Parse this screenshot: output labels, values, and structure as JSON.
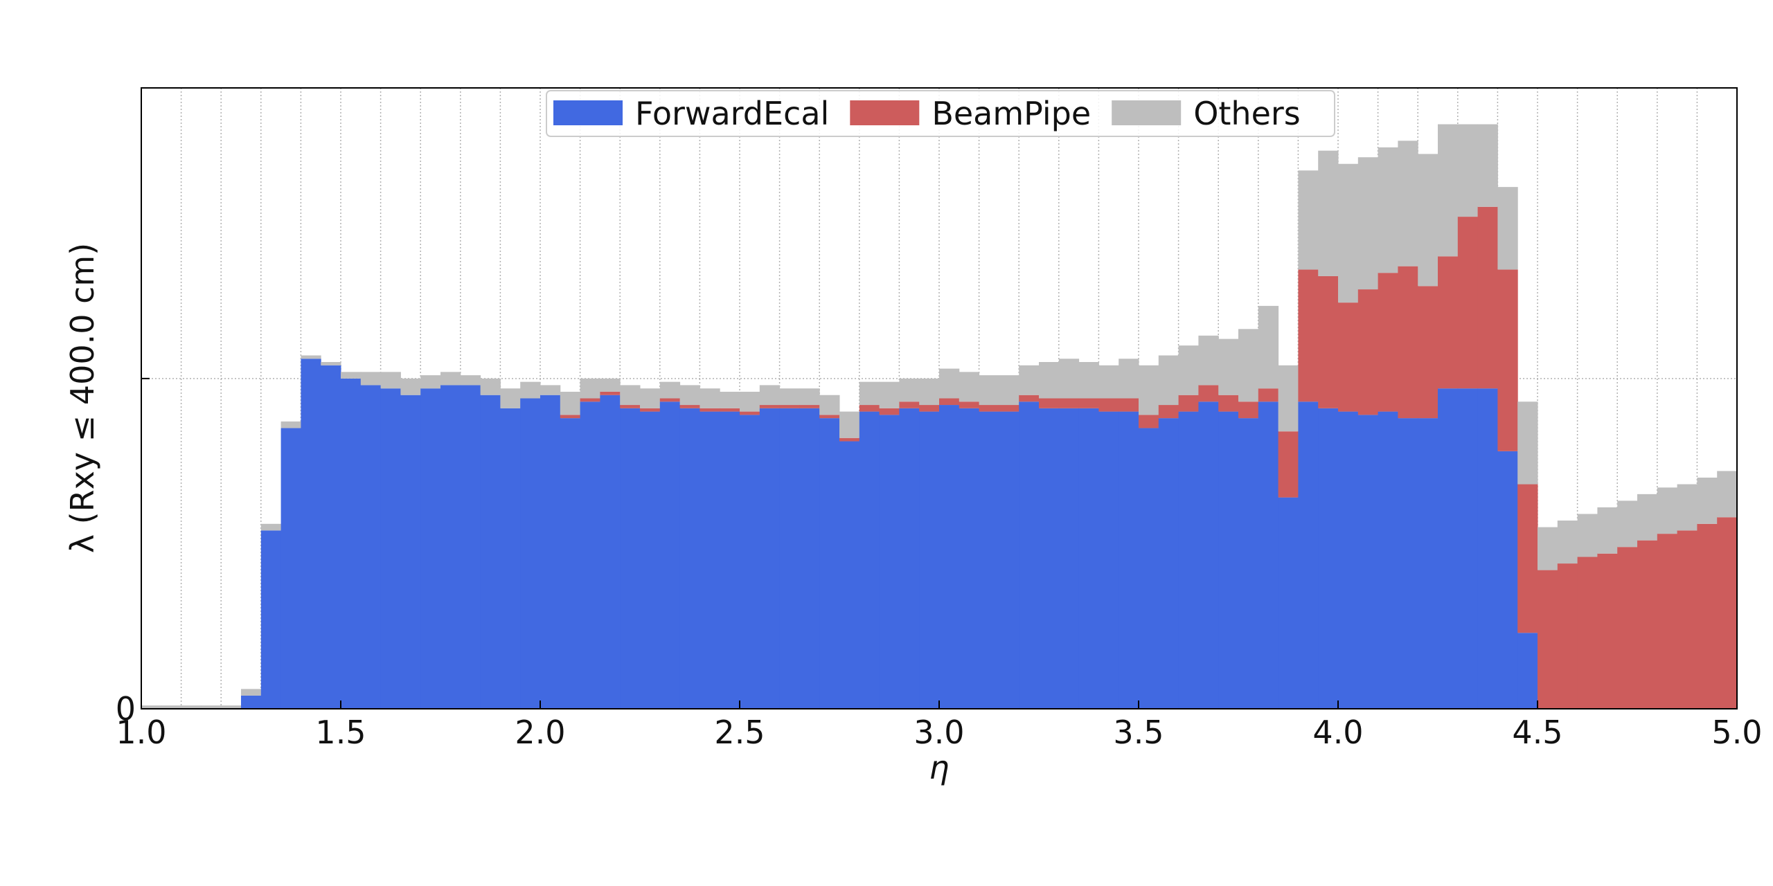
{
  "chart_data": {
    "type": "stacked_histogram",
    "xlabel": "η",
    "ylabel": "λ (Rxy ≤ 400.0 cm)",
    "bins": [
      1.0,
      1.05,
      1.1,
      1.15,
      1.2,
      1.25,
      1.3,
      1.35,
      1.4,
      1.45,
      1.5,
      1.55,
      1.6,
      1.65,
      1.7,
      1.75,
      1.8,
      1.85,
      1.9,
      1.95,
      2.0,
      2.05,
      2.1,
      2.15,
      2.2,
      2.25,
      2.3,
      2.35,
      2.4,
      2.45,
      2.5,
      2.55,
      2.6,
      2.65,
      2.7,
      2.75,
      2.8,
      2.85,
      2.9,
      2.95,
      3.0,
      3.05,
      3.1,
      3.15,
      3.2,
      3.25,
      3.3,
      3.35,
      3.4,
      3.45,
      3.5,
      3.55,
      3.6,
      3.65,
      3.7,
      3.75,
      3.8,
      3.85,
      3.9,
      3.95,
      4.0,
      4.05,
      4.1,
      4.15,
      4.2,
      4.25,
      4.3,
      4.35,
      4.4,
      4.45,
      4.5,
      4.55,
      4.6,
      4.65,
      4.7,
      4.75,
      4.8,
      4.85,
      4.9,
      4.95,
      5.0
    ],
    "series": [
      {
        "name": "ForwardEcal",
        "color": "#4169e1",
        "values": [
          0,
          0,
          0,
          0,
          0,
          0.04,
          0.54,
          0.85,
          1.06,
          1.04,
          1.0,
          0.98,
          0.97,
          0.95,
          0.97,
          0.98,
          0.98,
          0.95,
          0.91,
          0.94,
          0.95,
          0.88,
          0.93,
          0.95,
          0.91,
          0.9,
          0.93,
          0.91,
          0.9,
          0.9,
          0.89,
          0.91,
          0.91,
          0.91,
          0.88,
          0.81,
          0.9,
          0.89,
          0.91,
          0.9,
          0.92,
          0.91,
          0.9,
          0.9,
          0.93,
          0.91,
          0.91,
          0.91,
          0.9,
          0.9,
          0.85,
          0.88,
          0.9,
          0.93,
          0.9,
          0.88,
          0.93,
          0.64,
          0.93,
          0.91,
          0.9,
          0.89,
          0.9,
          0.88,
          0.88,
          0.97,
          0.97,
          0.97,
          0.78,
          0.23,
          0,
          0,
          0,
          0,
          0,
          0,
          0,
          0,
          0,
          0
        ]
      },
      {
        "name": "BeamPipe",
        "color": "#cd5c5c",
        "values": [
          0,
          0,
          0,
          0,
          0,
          0,
          0,
          0,
          0,
          0,
          0,
          0,
          0,
          0,
          0,
          0,
          0,
          0,
          0,
          0,
          0,
          0.01,
          0.01,
          0.01,
          0.01,
          0.01,
          0.01,
          0.01,
          0.01,
          0.01,
          0.01,
          0.01,
          0.01,
          0.01,
          0.01,
          0.01,
          0.02,
          0.02,
          0.02,
          0.02,
          0.02,
          0.02,
          0.02,
          0.02,
          0.02,
          0.03,
          0.03,
          0.03,
          0.04,
          0.04,
          0.04,
          0.04,
          0.05,
          0.05,
          0.05,
          0.05,
          0.04,
          0.2,
          0.4,
          0.4,
          0.33,
          0.38,
          0.42,
          0.46,
          0.4,
          0.4,
          0.52,
          0.55,
          0.55,
          0.45,
          0.42,
          0.44,
          0.46,
          0.47,
          0.49,
          0.51,
          0.53,
          0.54,
          0.56,
          0.58
        ]
      },
      {
        "name": "Others",
        "color": "#bebebe",
        "values": [
          0.01,
          0.01,
          0.01,
          0.01,
          0.01,
          0.02,
          0.02,
          0.02,
          0.01,
          0.01,
          0.02,
          0.04,
          0.05,
          0.05,
          0.04,
          0.04,
          0.03,
          0.05,
          0.06,
          0.05,
          0.03,
          0.07,
          0.06,
          0.04,
          0.06,
          0.06,
          0.05,
          0.06,
          0.06,
          0.05,
          0.06,
          0.06,
          0.05,
          0.05,
          0.06,
          0.08,
          0.07,
          0.08,
          0.07,
          0.08,
          0.09,
          0.09,
          0.09,
          0.09,
          0.09,
          0.11,
          0.12,
          0.11,
          0.1,
          0.12,
          0.15,
          0.15,
          0.15,
          0.15,
          0.17,
          0.22,
          0.25,
          0.2,
          0.3,
          0.38,
          0.42,
          0.4,
          0.38,
          0.38,
          0.4,
          0.4,
          0.28,
          0.25,
          0.25,
          0.25,
          0.13,
          0.13,
          0.13,
          0.14,
          0.14,
          0.14,
          0.14,
          0.14,
          0.14,
          0.14
        ]
      }
    ],
    "xlim": [
      1.0,
      5.0
    ],
    "ylim": [
      0,
      1.88
    ],
    "xticks": [
      {
        "value": 1.0,
        "label": "1.0"
      },
      1.5,
      {
        "value": 2.0,
        "label": "2.0"
      },
      2.5,
      {
        "value": 3.0,
        "label": "3.0"
      },
      3.5,
      {
        "value": 4.0,
        "label": "4.0"
      },
      4.5,
      {
        "value": 5.0,
        "label": "5.0"
      }
    ],
    "xgrid": [
      1.1,
      1.2,
      1.3,
      1.4,
      1.5,
      1.6,
      1.7,
      1.8,
      1.9,
      2.0,
      2.1,
      2.2,
      2.3,
      2.4,
      2.5,
      2.6,
      2.7,
      2.8,
      2.9,
      3.0,
      3.1,
      3.2,
      3.3,
      3.4,
      3.5,
      3.6,
      3.7,
      3.8,
      3.9,
      4.0,
      4.1,
      4.2,
      4.3,
      4.4,
      4.5,
      4.6,
      4.7,
      4.8,
      4.9
    ],
    "yticks": [
      0,
      {
        "value": 1,
        "label": null
      }
    ],
    "grid": true,
    "legend": "upper center"
  }
}
